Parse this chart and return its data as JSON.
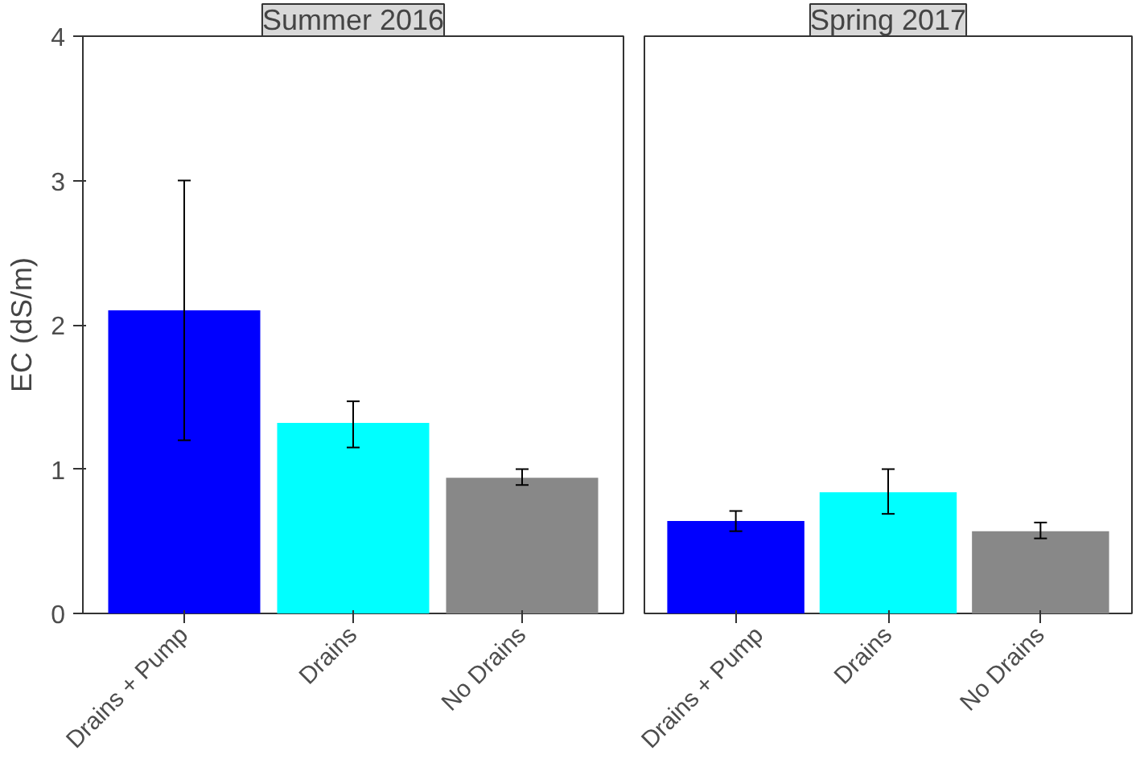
{
  "chart_data": [
    {
      "type": "bar",
      "title": "Summer 2016",
      "ylabel": "EC (dS/m)",
      "categories": [
        "Drains + Pump",
        "Drains",
        "No Drains"
      ],
      "values": [
        2.1,
        1.32,
        0.94
      ],
      "colors": [
        "#0000ff",
        "#00ffff",
        "#888888"
      ],
      "errors": [
        [
          1.2,
          3.0
        ],
        [
          1.15,
          1.47
        ],
        [
          0.89,
          1.0
        ]
      ],
      "ylim": [
        0,
        4
      ],
      "yticks": [
        0,
        1,
        2,
        3,
        4
      ],
      "grid": false
    },
    {
      "type": "bar",
      "title": "Spring 2017",
      "categories": [
        "Drains + Pump",
        "Drains",
        "No Drains"
      ],
      "values": [
        0.64,
        0.84,
        0.57
      ],
      "colors": [
        "#0000ff",
        "#00ffff",
        "#888888"
      ],
      "errors": [
        [
          0.57,
          0.71
        ],
        [
          0.69,
          1.0
        ],
        [
          0.52,
          0.63
        ]
      ],
      "ylim": [
        0,
        4
      ],
      "yticks": [
        0,
        1,
        2,
        3,
        4
      ],
      "grid": false,
      "tick_labels": "x"
    }
  ]
}
